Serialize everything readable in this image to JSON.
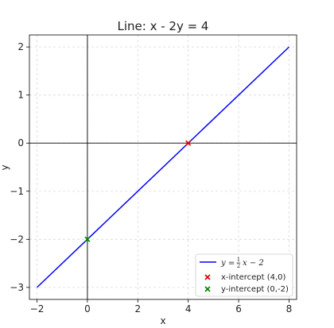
{
  "chart_data": {
    "type": "line",
    "title": "Line: x - 2y = 4",
    "xlabel": "x",
    "ylabel": "y",
    "xlim": [
      -2.3,
      8.3
    ],
    "ylim": [
      -3.25,
      2.25
    ],
    "xticks": [
      -2,
      0,
      2,
      4,
      6,
      8
    ],
    "yticks": [
      -3,
      -2,
      -1,
      0,
      1,
      2
    ],
    "grid": true,
    "grid_style": "dashed",
    "legend_position": "bottom-right",
    "colors": {
      "line": "#0000ff",
      "x_intercept": "#dd0000",
      "y_intercept": "#008000",
      "axis_lines": "#000000"
    },
    "series": [
      {
        "name": "y = ½x − 2",
        "legend_text": {
          "lhs": "y",
          "num": "1",
          "den": "2",
          "rhs": "x − 2"
        },
        "kind": "line",
        "x": [
          -2,
          8
        ],
        "y": [
          -3,
          2
        ]
      },
      {
        "name": "x-intercept (4,0)",
        "kind": "marker",
        "marker": "x",
        "x": [
          4
        ],
        "y": [
          0
        ]
      },
      {
        "name": "y-intercept (0,-2)",
        "kind": "marker",
        "marker": "x",
        "x": [
          0
        ],
        "y": [
          -2
        ]
      }
    ]
  }
}
